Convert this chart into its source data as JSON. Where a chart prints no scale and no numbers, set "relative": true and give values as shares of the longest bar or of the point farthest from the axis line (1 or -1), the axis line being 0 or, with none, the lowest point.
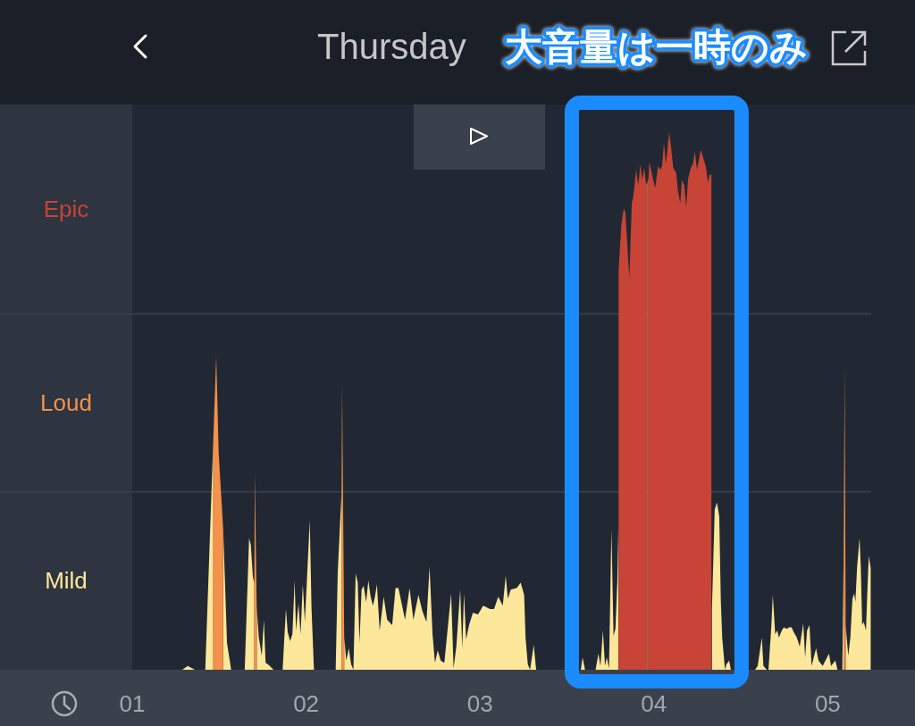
{
  "chart_data": {
    "type": "area",
    "title": "Thursday",
    "relative": true,
    "xlim": [
      1,
      5.25
    ],
    "xticks": [
      {
        "value": 1,
        "label": "01"
      },
      {
        "value": 2,
        "label": "02"
      },
      {
        "value": 3,
        "label": "03"
      },
      {
        "value": 4,
        "label": "04"
      },
      {
        "value": 5,
        "label": "05"
      }
    ],
    "series": [
      {
        "color": "#fde79a",
        "x": [
          1.288,
          1.319,
          1.36,
          1.42,
          1.466,
          1.493,
          1.523,
          1.545,
          1.569,
          1.647,
          1.672,
          1.682,
          1.694,
          1.702,
          1.709,
          1.716,
          1.728,
          1.745,
          1.757,
          1.767,
          1.781,
          1.813,
          1.865,
          1.874,
          1.884,
          1.894,
          1.908,
          1.921,
          1.934,
          1.942,
          1.956,
          1.968,
          1.981,
          1.993,
          2.021,
          2.031,
          2.045,
          2.17,
          2.182,
          2.204,
          2.212,
          2.219,
          2.231,
          2.245,
          2.259,
          2.272,
          2.285,
          2.297,
          2.307,
          2.319,
          2.331,
          2.345,
          2.358,
          2.371,
          2.384,
          2.396,
          2.407,
          2.423,
          2.446,
          2.466,
          2.495,
          2.514,
          2.531,
          2.552,
          2.569,
          2.595,
          2.617,
          2.646,
          2.669,
          2.692,
          2.71,
          2.727,
          2.741,
          2.757,
          2.774,
          2.795,
          2.834,
          2.848,
          2.864,
          2.886,
          2.898,
          2.908,
          2.92,
          2.937,
          2.959,
          2.989,
          3.018,
          3.057,
          3.081,
          3.105,
          3.131,
          3.148,
          3.16,
          3.177,
          3.211,
          3.234,
          3.254,
          3.262,
          3.275,
          3.288,
          3.309,
          3.323,
          3.58,
          3.59,
          3.604,
          3.665,
          3.681,
          3.693,
          3.707,
          3.719,
          3.729,
          3.742,
          3.756,
          3.768,
          3.779,
          3.79,
          3.796,
          4.068,
          4.334,
          4.35,
          4.363,
          4.376,
          4.385,
          4.393,
          4.409,
          4.417,
          4.433,
          4.443,
          4.505,
          4.582,
          4.597,
          4.621,
          4.63,
          4.65,
          4.659,
          4.676,
          4.684,
          4.698,
          4.71,
          4.719,
          4.736,
          4.748,
          4.762,
          4.779,
          4.792,
          4.804,
          4.822,
          4.839,
          4.859,
          4.87,
          4.881,
          4.895,
          4.907,
          4.933,
          4.947,
          4.971,
          5.007,
          5.019,
          5.044,
          5.056,
          5.084,
          5.092,
          5.097,
          5.103,
          5.118,
          5.13,
          5.142,
          5.152,
          5.159,
          5.169,
          5.183,
          5.19,
          5.198,
          5.207,
          5.22,
          5.227,
          5.236,
          5.247
        ],
        "values": [
          0,
          0.007,
          0,
          0,
          0.427,
          null,
          0.262,
          0.05,
          0,
          0,
          0.245,
          0.232,
          0.172,
          0.162,
          null,
          0.116,
          0.06,
          0.026,
          0.093,
          0.013,
          0.01,
          0,
          0,
          0.056,
          0.113,
          0.07,
          0.053,
          0.066,
          0.166,
          0.073,
          0.123,
          0.066,
          0.159,
          0.089,
          0.278,
          0.116,
          0,
          0,
          0.182,
          0.331,
          null,
          0.06,
          0.017,
          0.04,
          0.01,
          0,
          0.179,
          0.162,
          0.05,
          0.149,
          0.156,
          0.126,
          0.166,
          0.136,
          0.119,
          0.136,
          0.159,
          0.073,
          0.136,
          0.093,
          0.083,
          0.152,
          0.152,
          0.119,
          0.093,
          0.152,
          0.093,
          0.139,
          0.109,
          0.089,
          0.192,
          0.066,
          0.013,
          0.036,
          0.017,
          0.013,
          0.142,
          0.003,
          0.043,
          0.149,
          0.04,
          0.142,
          0.056,
          0.083,
          0.106,
          0.103,
          0.119,
          0.113,
          0.113,
          0.136,
          0.119,
          0.175,
          0.132,
          0.149,
          0.152,
          0.162,
          0.139,
          0.06,
          0.01,
          0,
          0.046,
          0,
          0,
          0.023,
          0,
          0,
          0.03,
          0.007,
          0.073,
          0.007,
          0.023,
          0.003,
          0.262,
          0.063,
          0.076,
          0.166,
          0.265,
          null,
          0.113,
          0.298,
          0.311,
          0.285,
          0.129,
          0.06,
          0,
          0.01,
          0.017,
          0,
          null,
          0,
          0.007,
          0.06,
          0.007,
          0,
          0,
          0.083,
          0.139,
          0.066,
          0.073,
          0.06,
          0.073,
          0.079,
          0.076,
          0.079,
          0.079,
          0.07,
          0.06,
          0.043,
          0.086,
          0.023,
          0.073,
          0.083,
          0.007,
          0.04,
          0.017,
          0.007,
          0.03,
          0.007,
          0.017,
          0,
          0,
          0.228,
          null,
          0.083,
          0.026,
          0.06,
          0.132,
          0.142,
          0.126,
          0.192,
          0.245,
          0.192,
          0.083,
          0.089,
          0.073,
          0.139,
          0.212,
          0.189
        ]
      },
      {
        "color": "#f4914a",
        "x": [
          1.466,
          1.483,
          1.497,
          1.523,
          1.586,
          1.702,
          1.705,
          1.716,
          1.935,
          2.204,
          2.207,
          2.219,
          2.809,
          3.962,
          3.968,
          4.35,
          5.092,
          5.097,
          5.103
        ],
        "values": [
          0.427,
          0.583,
          0.404,
          0.262,
          null,
          0.162,
          0.364,
          0.116,
          null,
          0.331,
          0.53,
          0.06,
          null,
          0.904,
          0.914,
          null,
          0.228,
          0.563,
          0.083
        ]
      },
      {
        "color": "#c84436",
        "x": [
          3.797,
          3.813,
          3.827,
          3.836,
          3.859,
          3.873,
          3.882,
          3.898,
          3.91,
          3.923,
          3.933,
          3.944,
          3.955,
          3.961,
          3.965,
          3.969,
          3.974,
          3.986,
          3.996,
          4.008,
          4.024,
          4.037,
          4.047,
          4.058,
          4.069,
          4.088,
          4.099,
          4.111,
          4.129,
          4.138,
          4.152,
          4.161,
          4.175,
          4.186,
          4.197,
          4.213,
          4.224,
          4.236,
          4.248,
          4.27,
          4.289,
          4.3,
          4.311,
          4.321,
          4.331
        ],
        "values": [
          0.742,
          0.828,
          0.858,
          0.851,
          0.728,
          0.868,
          0.881,
          0.93,
          0.901,
          0.94,
          0.911,
          0.934,
          0.904,
          0.904,
          null,
          0.914,
          0.944,
          0.927,
          0.911,
          0.897,
          0.937,
          0.93,
          0.937,
          0.98,
          0.94,
          1,
          0.974,
          0.934,
          0.924,
          0.891,
          0.868,
          0.911,
          0.901,
          0.861,
          0.914,
          0.934,
          0.94,
          0.964,
          0.93,
          0.967,
          0.947,
          0.934,
          0.907,
          0.921,
          0.921
        ]
      }
    ],
    "ref_lines": [
      {
        "axis": "y",
        "value": 0.331,
        "color": "#363d48"
      },
      {
        "axis": "y",
        "value": 0.662,
        "color": "#363d48"
      }
    ],
    "annotations": [
      {
        "text": "大音量は一時のみ",
        "x": 4.088,
        "y": 1
      },
      "Mild",
      "Loud",
      "Epic"
    ]
  }
}
